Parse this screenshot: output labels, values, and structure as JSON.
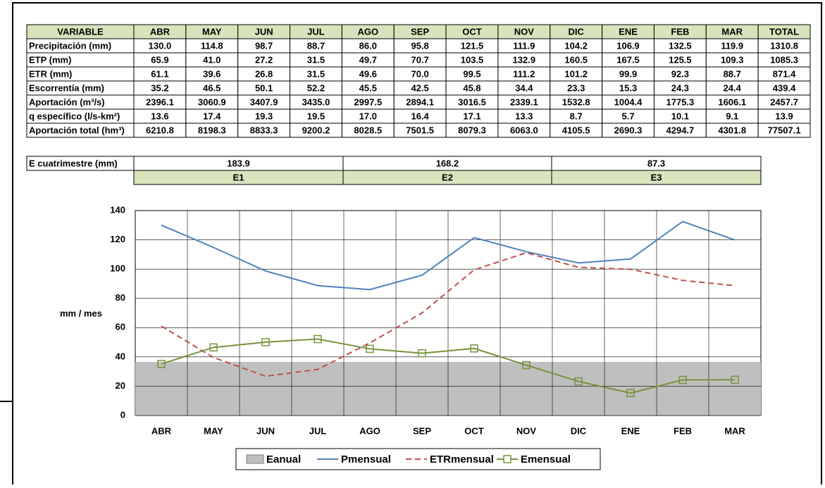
{
  "table": {
    "header": [
      "VARIABLE",
      "ABR",
      "MAY",
      "JUN",
      "JUL",
      "AGO",
      "SEP",
      "OCT",
      "NOV",
      "DIC",
      "ENE",
      "FEB",
      "MAR",
      "TOTAL"
    ],
    "rows": [
      [
        "Precipitación (mm)",
        "130.0",
        "114.8",
        "98.7",
        "88.7",
        "86.0",
        "95.8",
        "121.5",
        "111.9",
        "104.2",
        "106.9",
        "132.5",
        "119.9",
        "1310.8"
      ],
      [
        "ETP (mm)",
        "65.9",
        "41.0",
        "27.2",
        "31.5",
        "49.7",
        "70.7",
        "103.5",
        "132.9",
        "160.5",
        "167.5",
        "125.5",
        "109.3",
        "1085.3"
      ],
      [
        "ETR (mm)",
        "61.1",
        "39.6",
        "26.8",
        "31.5",
        "49.6",
        "70.0",
        "99.5",
        "111.2",
        "101.2",
        "99.9",
        "92.3",
        "88.7",
        "871.4"
      ],
      [
        "Escorrentía (mm)",
        "35.2",
        "46.5",
        "50.1",
        "52.2",
        "45.5",
        "42.5",
        "45.8",
        "34.4",
        "23.3",
        "15.3",
        "24.3",
        "24.4",
        "439.4"
      ],
      [
        "Aportación (m³/s)",
        "2396.1",
        "3060.9",
        "3407.9",
        "3435.0",
        "2997.5",
        "2894.1",
        "3016.5",
        "2339.1",
        "1532.8",
        "1004.4",
        "1775.3",
        "1606.1",
        "2457.7"
      ],
      [
        "q específico (l/s-km²)",
        "13.6",
        "17.4",
        "19.3",
        "19.5",
        "17.0",
        "16.4",
        "17.1",
        "13.3",
        "8.7",
        "5.7",
        "10.1",
        "9.1",
        "13.9"
      ],
      [
        "Aportación total (hm³)",
        "6210.8",
        "8198.3",
        "8833.3",
        "9200.2",
        "8028.5",
        "7501.5",
        "8079.3",
        "6063.0",
        "4105.5",
        "2690.3",
        "4294.7",
        "4301.8",
        "77507.1"
      ]
    ]
  },
  "e_table": {
    "label": "E cuatrimestre (mm)",
    "values": [
      "183.9",
      "168.2",
      "87.3"
    ],
    "periods": [
      "E1",
      "E2",
      "E3"
    ]
  },
  "chart_data": {
    "type": "line",
    "y_label": "mm / mes",
    "categories": [
      "ABR",
      "MAY",
      "JUN",
      "JUL",
      "AGO",
      "SEP",
      "OCT",
      "NOV",
      "DIC",
      "ENE",
      "FEB",
      "MAR"
    ],
    "ylim": [
      0,
      140
    ],
    "yticks": [
      0,
      20,
      40,
      60,
      80,
      100,
      120,
      140
    ],
    "grid": true,
    "legend": "bottom",
    "series": [
      {
        "name": "Eanual",
        "kind": "area",
        "color": "#bfbfbf",
        "values": [
          36.6,
          36.6,
          36.6,
          36.6,
          36.6,
          36.6,
          36.6,
          36.6,
          36.6,
          36.6,
          36.6,
          36.6
        ]
      },
      {
        "name": "Pmensual",
        "kind": "line",
        "color": "#4f81bd",
        "values": [
          130.0,
          114.8,
          98.7,
          88.7,
          86.0,
          95.8,
          121.5,
          111.9,
          104.2,
          106.9,
          132.5,
          119.9
        ]
      },
      {
        "name": "ETRmensual",
        "kind": "line",
        "dashed": true,
        "color": "#c0504d",
        "values": [
          61.1,
          39.6,
          26.8,
          31.5,
          49.6,
          70.0,
          99.5,
          111.2,
          101.2,
          99.9,
          92.3,
          88.7
        ]
      },
      {
        "name": "Emensual",
        "kind": "line",
        "marker": "square",
        "color": "#77933c",
        "values": [
          35.2,
          46.5,
          50.1,
          52.2,
          45.5,
          42.5,
          45.8,
          34.4,
          23.3,
          15.3,
          24.3,
          24.4
        ]
      }
    ]
  }
}
